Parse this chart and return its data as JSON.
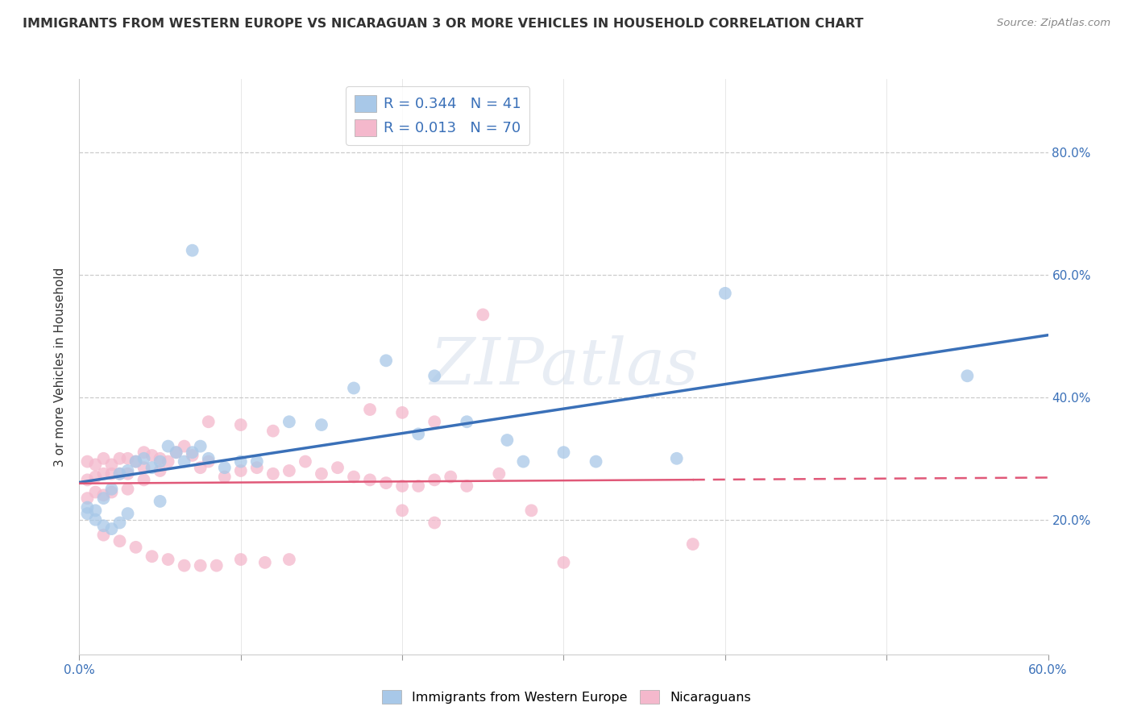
{
  "title": "IMMIGRANTS FROM WESTERN EUROPE VS NICARAGUAN 3 OR MORE VEHICLES IN HOUSEHOLD CORRELATION CHART",
  "source": "Source: ZipAtlas.com",
  "ylabel": "3 or more Vehicles in Household",
  "xlim": [
    0.0,
    0.6
  ],
  "ylim": [
    -0.02,
    0.92
  ],
  "grid_yticks": [
    0.2,
    0.4,
    0.6,
    0.8
  ],
  "right_ytick_labels": [
    "20.0%",
    "40.0%",
    "60.0%",
    "80.0%"
  ],
  "xtick_positions": [
    0.0,
    0.1,
    0.2,
    0.3,
    0.4,
    0.5,
    0.6
  ],
  "xtick_labels": [
    "0.0%",
    "",
    "",
    "",
    "",
    "",
    "60.0%"
  ],
  "legend_blue_r": "0.344",
  "legend_blue_n": "41",
  "legend_pink_r": "0.013",
  "legend_pink_n": "70",
  "blue_color": "#a8c8e8",
  "pink_color": "#f4b8cc",
  "blue_line_color": "#3a70b8",
  "pink_line_color": "#e05878",
  "watermark": "ZIPatlas",
  "blue_scatter_x": [
    0.005,
    0.01,
    0.015,
    0.02,
    0.025,
    0.03,
    0.035,
    0.04,
    0.045,
    0.05,
    0.055,
    0.06,
    0.065,
    0.07,
    0.075,
    0.08,
    0.09,
    0.1,
    0.11,
    0.13,
    0.15,
    0.17,
    0.19,
    0.21,
    0.22,
    0.24,
    0.265,
    0.275,
    0.3,
    0.32,
    0.37,
    0.4,
    0.55,
    0.005,
    0.01,
    0.015,
    0.02,
    0.025,
    0.03,
    0.05,
    0.07
  ],
  "blue_scatter_y": [
    0.22,
    0.215,
    0.235,
    0.25,
    0.275,
    0.28,
    0.295,
    0.3,
    0.285,
    0.295,
    0.32,
    0.31,
    0.295,
    0.31,
    0.32,
    0.3,
    0.285,
    0.295,
    0.295,
    0.36,
    0.355,
    0.415,
    0.46,
    0.34,
    0.435,
    0.36,
    0.33,
    0.295,
    0.31,
    0.295,
    0.3,
    0.57,
    0.435,
    0.21,
    0.2,
    0.19,
    0.185,
    0.195,
    0.21,
    0.23,
    0.64
  ],
  "pink_scatter_x": [
    0.005,
    0.005,
    0.005,
    0.01,
    0.01,
    0.01,
    0.015,
    0.015,
    0.015,
    0.02,
    0.02,
    0.02,
    0.025,
    0.025,
    0.03,
    0.03,
    0.03,
    0.035,
    0.04,
    0.04,
    0.04,
    0.045,
    0.05,
    0.05,
    0.055,
    0.06,
    0.065,
    0.07,
    0.075,
    0.08,
    0.09,
    0.1,
    0.11,
    0.12,
    0.13,
    0.14,
    0.15,
    0.16,
    0.17,
    0.18,
    0.19,
    0.2,
    0.21,
    0.22,
    0.23,
    0.24,
    0.25,
    0.26,
    0.18,
    0.2,
    0.22,
    0.08,
    0.1,
    0.12,
    0.2,
    0.22,
    0.28,
    0.3,
    0.38,
    0.015,
    0.025,
    0.035,
    0.045,
    0.055,
    0.065,
    0.075,
    0.085,
    0.1,
    0.115,
    0.13
  ],
  "pink_scatter_y": [
    0.235,
    0.265,
    0.295,
    0.245,
    0.27,
    0.29,
    0.24,
    0.275,
    0.3,
    0.245,
    0.275,
    0.29,
    0.275,
    0.3,
    0.25,
    0.275,
    0.3,
    0.295,
    0.285,
    0.31,
    0.265,
    0.305,
    0.28,
    0.3,
    0.295,
    0.31,
    0.32,
    0.305,
    0.285,
    0.295,
    0.27,
    0.28,
    0.285,
    0.275,
    0.28,
    0.295,
    0.275,
    0.285,
    0.27,
    0.265,
    0.26,
    0.255,
    0.255,
    0.265,
    0.27,
    0.255,
    0.535,
    0.275,
    0.38,
    0.375,
    0.36,
    0.36,
    0.355,
    0.345,
    0.215,
    0.195,
    0.215,
    0.13,
    0.16,
    0.175,
    0.165,
    0.155,
    0.14,
    0.135,
    0.125,
    0.125,
    0.125,
    0.135,
    0.13,
    0.135
  ]
}
